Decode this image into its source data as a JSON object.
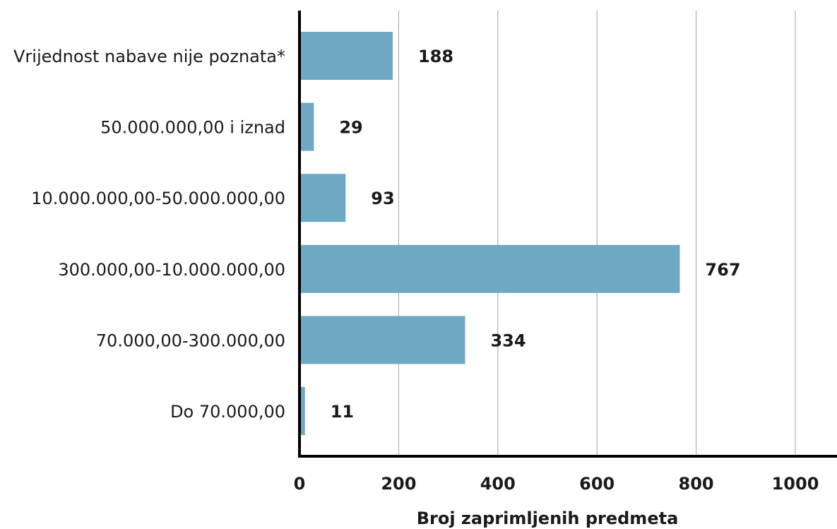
{
  "chart_data": {
    "type": "bar",
    "orientation": "horizontal",
    "categories": [
      "Vrijednost nabave nije poznata*",
      "50.000.000,00 i iznad",
      "10.000.000,00-50.000.000,00",
      "300.000,00-10.000.000,00",
      "70.000,00-300.000,00",
      "Do 70.000,00"
    ],
    "values": [
      188,
      29,
      93,
      767,
      334,
      11
    ],
    "value_labels": [
      "188",
      "29",
      "93",
      "767",
      "334",
      "11"
    ],
    "xlabel": "Broj zaprimljenih predmeta",
    "ylabel": "",
    "xlim": [
      0,
      1000
    ],
    "xticks": [
      0,
      200,
      400,
      600,
      800,
      1000
    ],
    "xtick_labels": [
      "0",
      "200",
      "400",
      "600",
      "800",
      "1000"
    ],
    "grid": "vertical",
    "bar_color": "#6ea8c4",
    "grid_color": "#a0a0a0",
    "axis_color": "#000000"
  }
}
